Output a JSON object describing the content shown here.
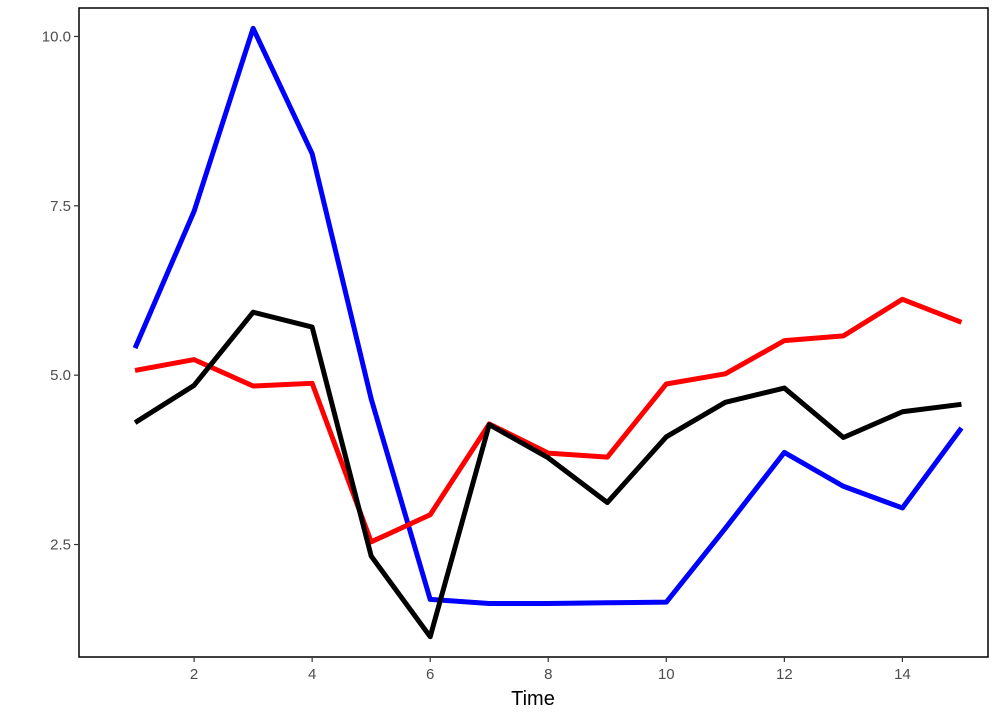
{
  "chart_data": {
    "type": "line",
    "title": "",
    "xlabel": "Time",
    "ylabel": "",
    "x": [
      1,
      2,
      3,
      4,
      5,
      6,
      7,
      8,
      9,
      10,
      11,
      12,
      13,
      14,
      15
    ],
    "xlim": [
      0.05,
      15.45
    ],
    "ylim": [
      0.84,
      10.42
    ],
    "x_ticks": [
      2,
      4,
      6,
      8,
      10,
      12,
      14
    ],
    "x_tick_labels": [
      "2",
      "4",
      "6",
      "8",
      "10",
      "12",
      "14"
    ],
    "y_ticks": [
      2.5,
      5.0,
      7.5,
      10.0
    ],
    "y_tick_labels": [
      "2.5",
      "5.0",
      "7.5",
      "10.0"
    ],
    "grid": false,
    "series": [
      {
        "color": "#0000ff",
        "values": [
          5.4,
          7.42,
          10.12,
          8.27,
          4.65,
          1.69,
          1.63,
          1.63,
          1.64,
          1.65,
          2.74,
          3.86,
          3.36,
          3.04,
          4.22
        ]
      },
      {
        "color": "#ff0000",
        "values": [
          5.07,
          5.23,
          4.84,
          4.88,
          2.54,
          2.94,
          4.28,
          3.85,
          3.79,
          4.87,
          5.02,
          5.51,
          5.58,
          6.12,
          5.78
        ]
      },
      {
        "color": "#000000",
        "values": [
          4.3,
          4.85,
          5.93,
          5.71,
          2.33,
          1.14,
          4.27,
          3.78,
          3.12,
          4.09,
          4.6,
          4.81,
          4.08,
          4.46,
          4.57
        ]
      }
    ]
  }
}
